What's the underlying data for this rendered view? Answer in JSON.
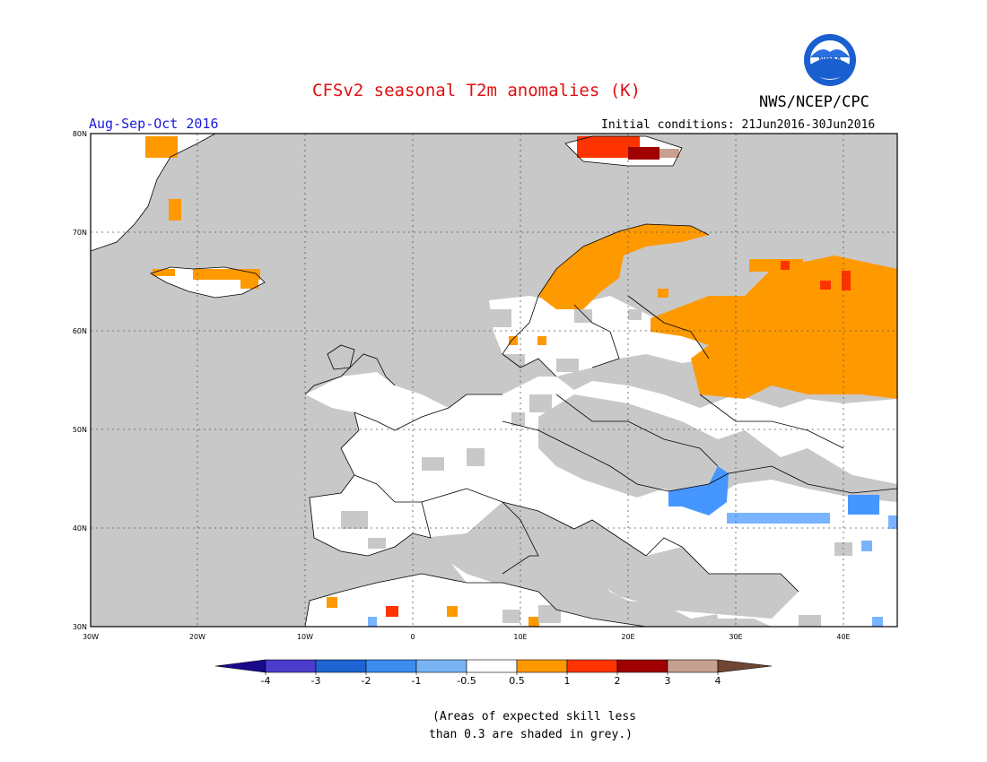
{
  "header": {
    "title": "CFSv2 seasonal T2m anomalies (K)",
    "agency": "NWS/NCEP/CPC",
    "logo_text": "NOAA",
    "season": "Aug-Sep-Oct 2016",
    "initial_conditions": "Initial conditions: 21Jun2016-30Jun2016"
  },
  "map": {
    "lat_labels": [
      "80N",
      "70N",
      "60N",
      "50N",
      "40N",
      "30N"
    ],
    "lon_labels": [
      "30W",
      "20W",
      "10W",
      "0",
      "10E",
      "20E",
      "30E",
      "40E"
    ],
    "colors": {
      "ocean_grey": "#c8c8c8",
      "land_white": "#ffffff",
      "anomaly_0_5_1": "#ff9900",
      "anomaly_1_2": "#ff3300",
      "anomaly_2_3": "#a00000",
      "anomaly_3_4": "#c8a090",
      "neg_0_5_1": "#78b4ff",
      "neg_1_2": "#4696ff"
    }
  },
  "colorbar": {
    "labels": [
      "-4",
      "-3",
      "-2",
      "-1",
      "-0.5",
      "0.5",
      "1",
      "2",
      "3",
      "4"
    ],
    "colors": [
      "#1a0a8c",
      "#4b3ccc",
      "#1e64d2",
      "#3c8cf0",
      "#78b4f5",
      "#ffffff",
      "#ff9900",
      "#ff3300",
      "#a00000",
      "#c8a090",
      "#6e4632"
    ]
  },
  "note": {
    "line1": "(Areas of expected skill less",
    "line2": "than 0.3 are shaded in grey.)"
  }
}
